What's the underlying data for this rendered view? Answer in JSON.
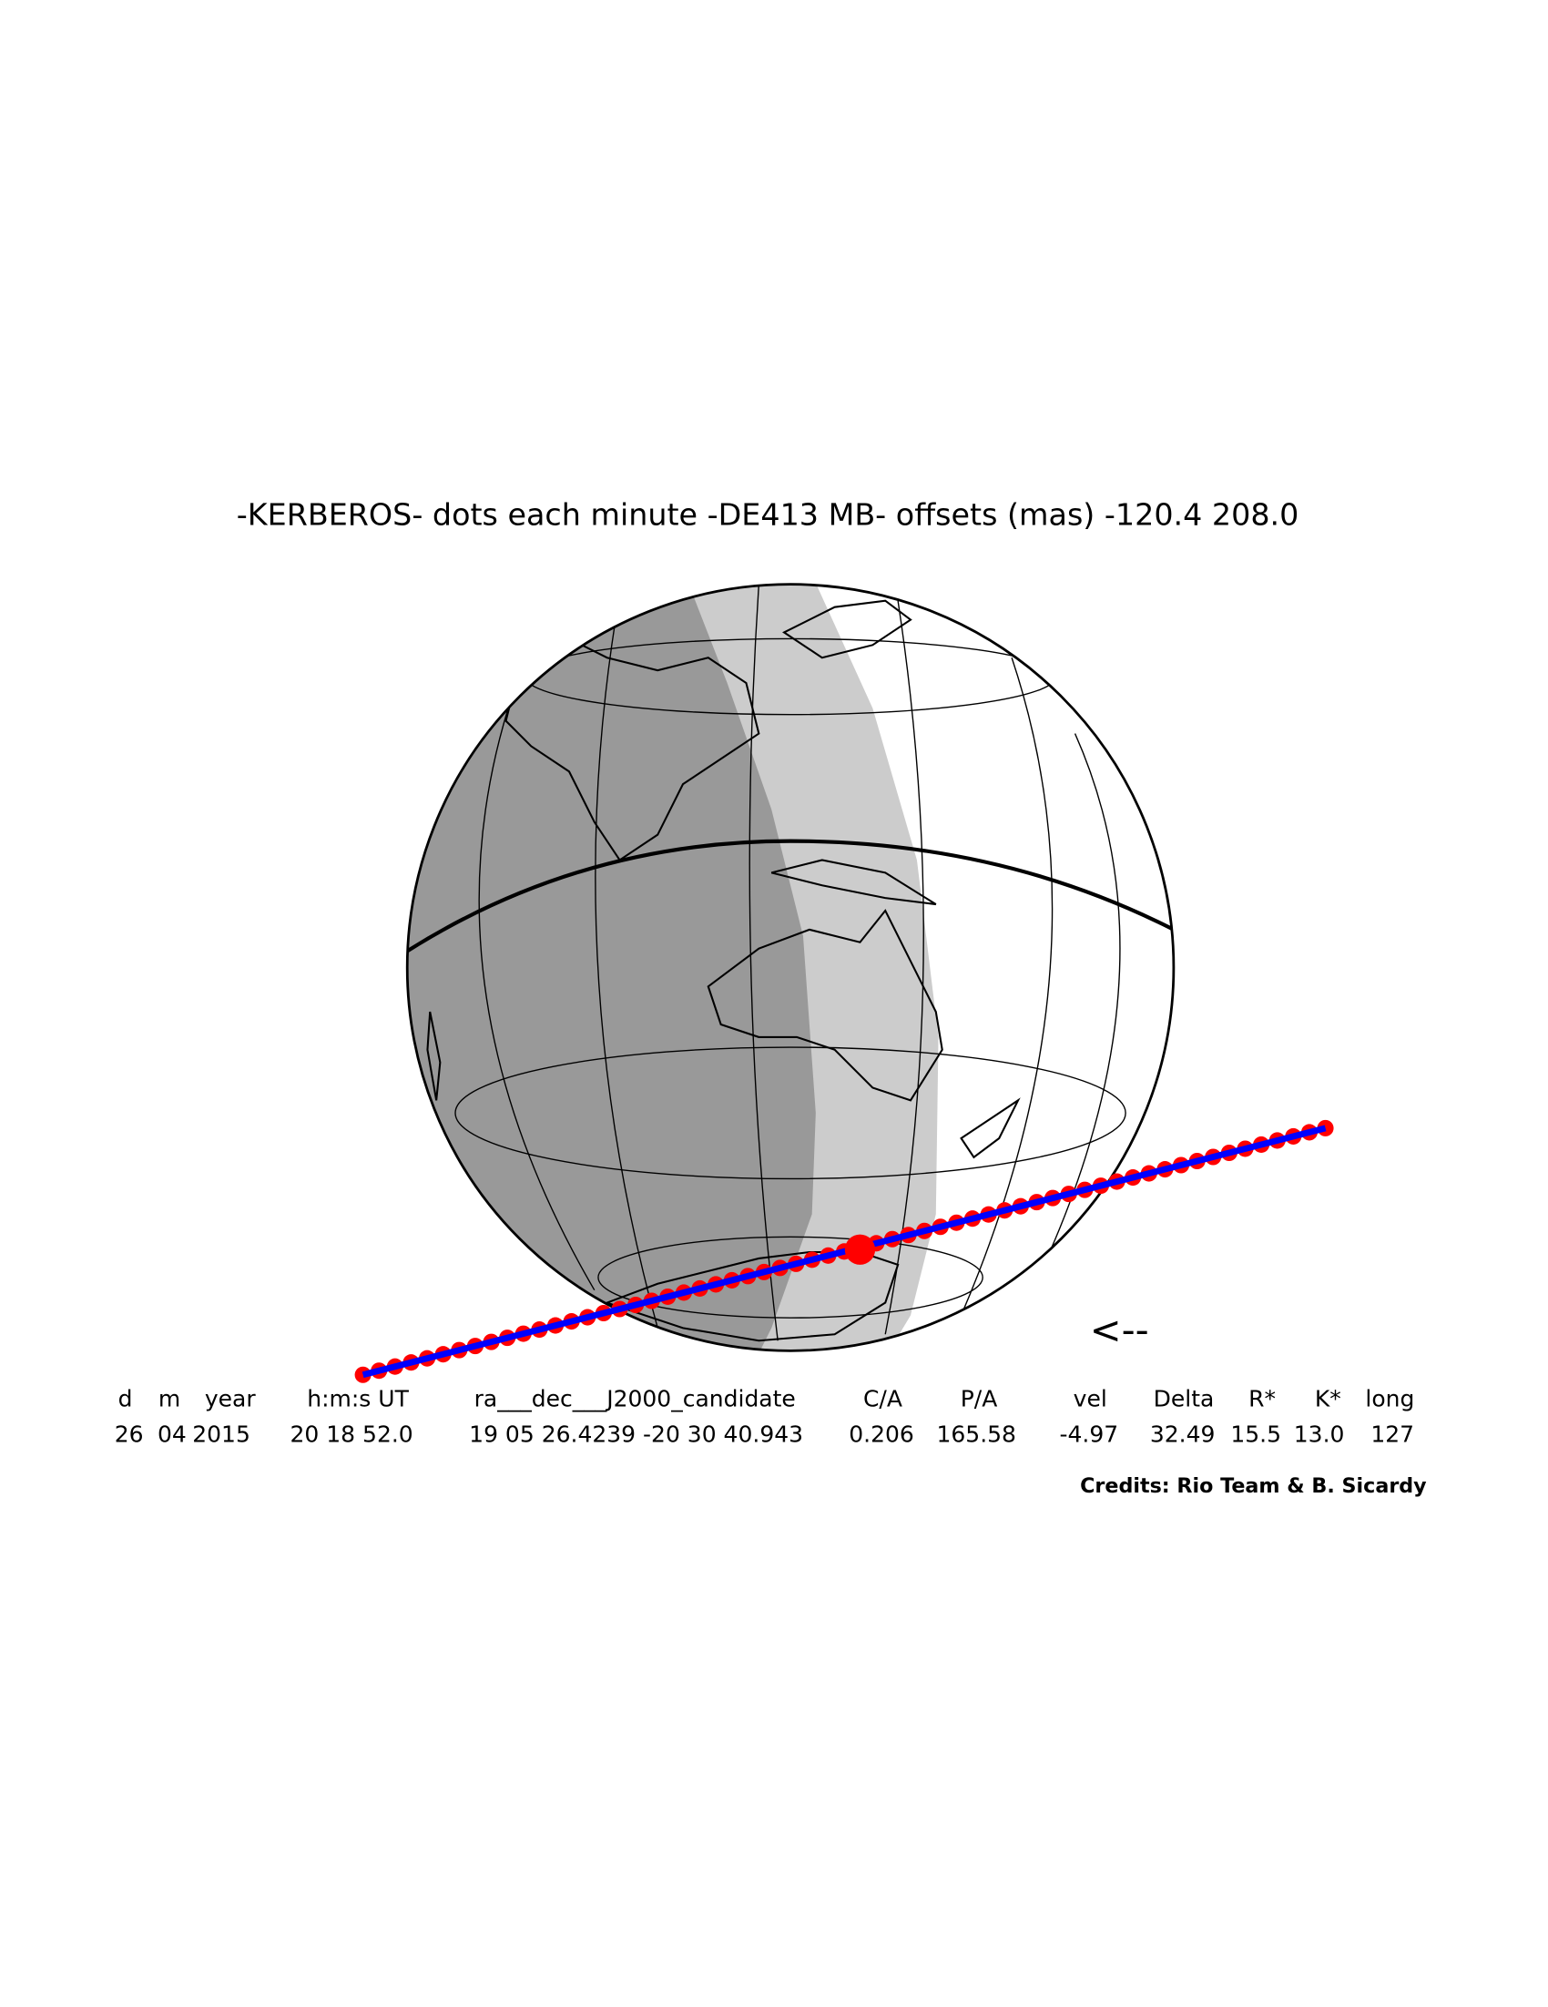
{
  "title": "-KERBEROS- dots each minute -DE413 MB- offsets (mas) -120.4  208.0",
  "direction": "<--",
  "table": {
    "headers": [
      "d",
      "m",
      "year",
      "h:m:s UT",
      "ra___dec___J2000_candidate",
      "C/A",
      "P/A",
      "vel",
      "Delta",
      "R*",
      "K*",
      "long"
    ],
    "values": [
      "26",
      "04",
      "2015",
      "20 18 52.0",
      "19 05 26.4239 -20 30 40.943",
      "0.206",
      "165.58",
      "-4.97",
      "32.49",
      "15.5",
      "13.0",
      "127"
    ]
  },
  "credits": "Credits: Rio Team & B. Sicardy"
}
